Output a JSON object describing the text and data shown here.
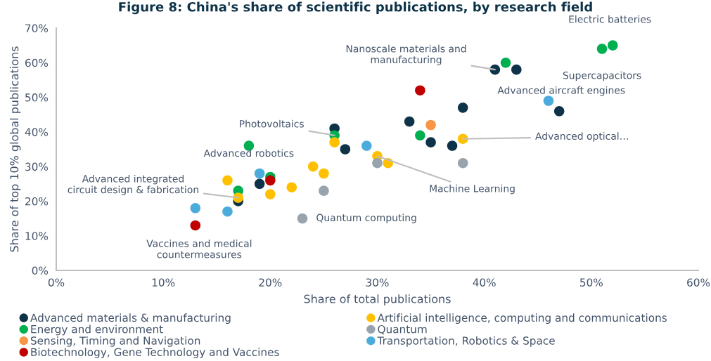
{
  "chart_data": {
    "type": "scatter",
    "title": "Figure 8: China's share of scientific publications, by research field",
    "xlabel": "Share of total publications",
    "ylabel": "Share of top 10% global publications",
    "xlim": [
      0,
      60
    ],
    "ylim": [
      0,
      70
    ],
    "xticks": [
      {
        "value": 0,
        "label": "0%"
      },
      {
        "value": 10,
        "label": "10%"
      },
      {
        "value": 20,
        "label": "20%"
      },
      {
        "value": 30,
        "label": "30%"
      },
      {
        "value": 40,
        "label": "40%"
      },
      {
        "value": 50,
        "label": "50%"
      },
      {
        "value": 60,
        "label": "60%"
      }
    ],
    "yticks": [
      {
        "value": 0,
        "label": "0%"
      },
      {
        "value": 10,
        "label": "10%"
      },
      {
        "value": 20,
        "label": "20%"
      },
      {
        "value": 30,
        "label": "30%"
      },
      {
        "value": 40,
        "label": "40%"
      },
      {
        "value": 50,
        "label": "50%"
      },
      {
        "value": 60,
        "label": "60%"
      },
      {
        "value": 70,
        "label": "70%"
      }
    ],
    "grid": false,
    "legend": "bottom",
    "marker": "circle",
    "series": [
      {
        "name": "Advanced materials & manufacturing",
        "color": "#0e3348",
        "x": [
          17,
          19,
          26,
          27,
          33,
          35,
          37,
          38,
          41,
          43,
          47
        ],
        "values": [
          20,
          25,
          41,
          35,
          43,
          37,
          36,
          47,
          58,
          58,
          46
        ]
      },
      {
        "name": "Energy and environment",
        "color": "#00b050",
        "x": [
          17,
          18,
          20,
          26,
          34,
          42,
          51,
          52
        ],
        "values": [
          23,
          36,
          27,
          39,
          39,
          60,
          64,
          65
        ]
      },
      {
        "name": "Sensing, Timing and Navigation",
        "color": "#f79646",
        "x": [
          35
        ],
        "values": [
          42
        ]
      },
      {
        "name": "Biotechnology, Gene Technology and Vaccines",
        "color": "#c00000",
        "x": [
          13,
          20,
          34
        ],
        "values": [
          13,
          26,
          52
        ]
      },
      {
        "name": "Artificial intelligence, computing and communications",
        "color": "#ffc000",
        "x": [
          16,
          17,
          20,
          22,
          24,
          25,
          26,
          30,
          31,
          38
        ],
        "values": [
          26,
          21,
          22,
          24,
          30,
          28,
          37,
          33,
          31,
          38
        ]
      },
      {
        "name": "Quantum",
        "color": "#98a4ad",
        "x": [
          23,
          25,
          30,
          38
        ],
        "values": [
          15,
          23,
          31,
          31
        ]
      },
      {
        "name": "Transportation, Robotics & Space",
        "color": "#4bacdc",
        "x": [
          13,
          16,
          19,
          29,
          46
        ],
        "values": [
          18,
          17,
          28,
          36,
          49
        ]
      }
    ],
    "annotations": [
      {
        "text": "Electric batteries",
        "x": 52,
        "y": 65
      },
      {
        "text": "Supercapacitors",
        "x": 51,
        "y": 64
      },
      {
        "text": "Nanoscale materials and\nmanufacturing",
        "x": 41,
        "y": 58
      },
      {
        "text": "Advanced aircraft engines",
        "x": 43,
        "y": 58
      },
      {
        "text": "Photovoltaics",
        "x": 26,
        "y": 39
      },
      {
        "text": "Advanced optical…",
        "x": 38,
        "y": 38
      },
      {
        "text": "Machine Learning",
        "x": 30,
        "y": 33
      },
      {
        "text": "Advanced robotics",
        "x": 19,
        "y": 28
      },
      {
        "text": "Advanced integrated\ncircuit design & fabrication",
        "x": 17,
        "y": 21
      },
      {
        "text": "Vaccines and medical\ncountermeasures",
        "x": 13,
        "y": 13
      },
      {
        "text": "Quantum computing",
        "x": 23,
        "y": 15
      }
    ]
  }
}
